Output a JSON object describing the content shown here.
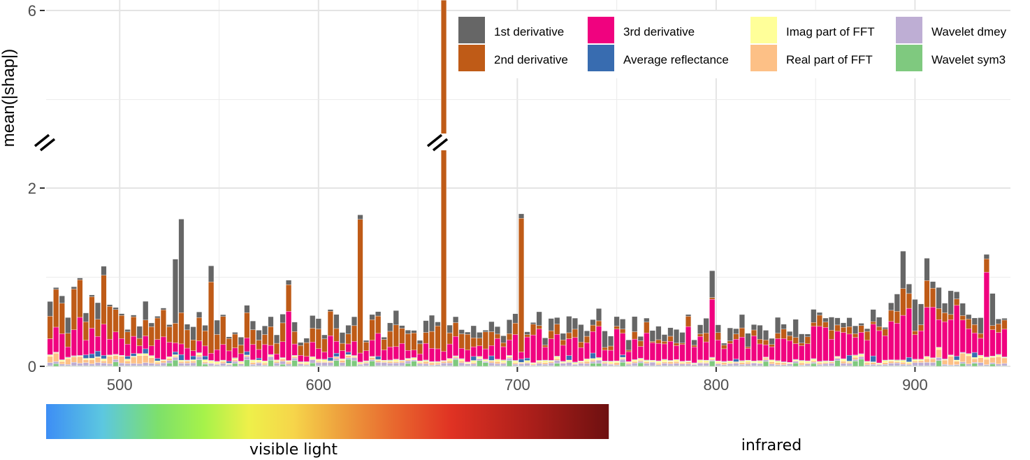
{
  "chart_data": {
    "type": "bar",
    "stacked": true,
    "title": "",
    "xlabel": "",
    "ylabel": "mean(|shap|)",
    "xlim": [
      463,
      948
    ],
    "ylim": [
      0,
      6
    ],
    "axis_break": {
      "from": 2.3,
      "to": 5.8,
      "display": "//"
    },
    "y_ticks": [
      {
        "value": 0,
        "label": "0"
      },
      {
        "value": 2,
        "label": "2"
      },
      {
        "value": 6,
        "label": "6"
      }
    ],
    "x_ticks": [
      {
        "value": 500,
        "label": "500"
      },
      {
        "value": 600,
        "label": "600"
      },
      {
        "value": 700,
        "label": "700"
      },
      {
        "value": 800,
        "label": "800"
      },
      {
        "value": 900,
        "label": "900"
      }
    ],
    "grid": true,
    "legend_position": "top-right",
    "series": [
      {
        "name": "1st derivative",
        "color": "#666666"
      },
      {
        "name": "2nd derivative",
        "color": "#bf5b17"
      },
      {
        "name": "3rd derivative",
        "color": "#f0027f"
      },
      {
        "name": "Average reflectance",
        "color": "#386cb0"
      },
      {
        "name": "Imag part of FFT",
        "color": "#ffff99"
      },
      {
        "name": "Real part of FFT",
        "color": "#fdc086"
      },
      {
        "name": "Wavelet dmey",
        "color": "#beaed4"
      },
      {
        "name": "Wavelet sym3",
        "color": "#7fc97f"
      }
    ],
    "peaks": [
      {
        "x": 492,
        "total": 1.25,
        "s1": 0.1,
        "s2": 0.55,
        "s3": 0.35
      },
      {
        "x": 528,
        "total": 1.22,
        "s1": 0.72,
        "s2": 0.22,
        "s3": 0.1
      },
      {
        "x": 530,
        "total": 1.7,
        "s1": 1.05,
        "s2": 0.35,
        "s3": 0.12
      },
      {
        "x": 546,
        "total": 1.13,
        "s1": 0.18,
        "s2": 0.8,
        "s3": 0.08
      },
      {
        "x": 584,
        "total": 1.01,
        "s1": 0.05,
        "s2": 0.3,
        "s3": 0.55
      },
      {
        "x": 620,
        "total": 1.72,
        "s1": 0.05,
        "s2": 1.5,
        "s3": 0.1
      },
      {
        "x": 662,
        "total": 6.2,
        "s1": 0.1,
        "s2": 5.95,
        "s3": 0.1
      },
      {
        "x": 703,
        "total": 1.7,
        "s1": 0.05,
        "s2": 1.5,
        "s3": 0.08
      },
      {
        "x": 798,
        "total": 1.03,
        "s1": 0.3,
        "s2": 0.02,
        "s3": 0.65
      },
      {
        "x": 894,
        "total": 1.28,
        "s1": 0.42,
        "s2": 0.3,
        "s3": 0.5
      },
      {
        "x": 907,
        "total": 1.18,
        "s1": 0.25,
        "s2": 0.3,
        "s3": 0.55
      },
      {
        "x": 935,
        "total": 1.23,
        "s1": 0.05,
        "s2": 0.15,
        "s3": 0.95
      }
    ],
    "annotations": {
      "visible_label": "visible light",
      "infrared_label": "infrared",
      "visible_range_nm": [
        463,
        746
      ]
    }
  }
}
